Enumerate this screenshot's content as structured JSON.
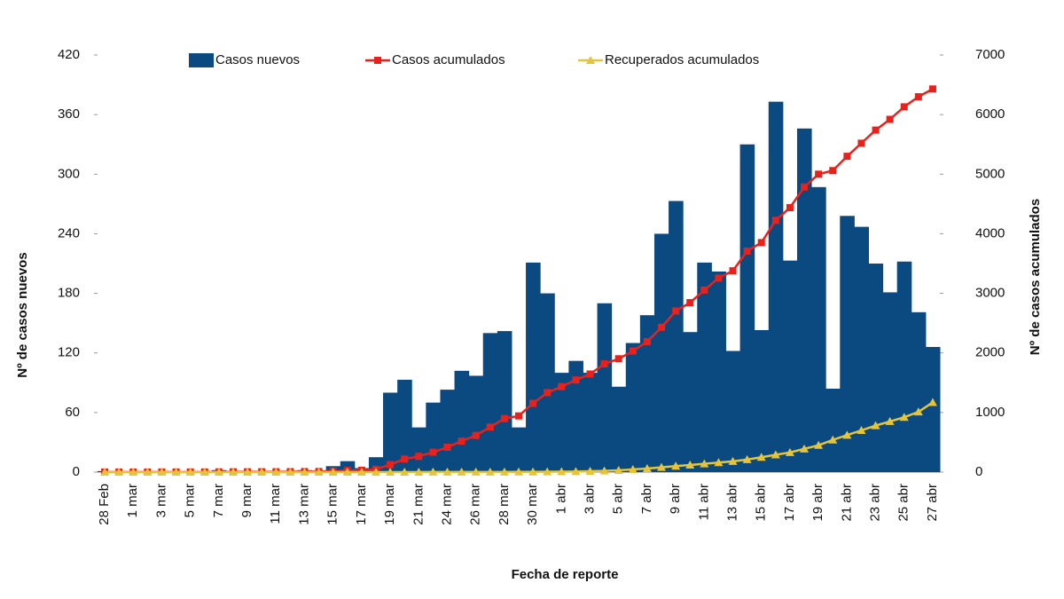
{
  "chart_data": {
    "type": "bar_line",
    "x_label": "Fecha de reporte",
    "y_label": "Nº de casos nuevos",
    "y2_label": "Nº de casos acumulados",
    "categories": [
      "28 Feb",
      null,
      "1 mar",
      null,
      "3 mar",
      null,
      "5 mar",
      null,
      "7 mar",
      null,
      "9 mar",
      null,
      "11 mar",
      null,
      "13 mar",
      null,
      "15 mar",
      null,
      "17 mar",
      null,
      "19 mar",
      null,
      "21 mar",
      null,
      "24 mar",
      null,
      "26 mar",
      null,
      "28 mar",
      null,
      "30 mar",
      null,
      "1 abr",
      null,
      "3 abr",
      null,
      "5 abr",
      null,
      "7 abr",
      null,
      "9 abr",
      null,
      "11 abr",
      null,
      "13 abr",
      null,
      "15 abr",
      null,
      "17 abr",
      null,
      "19 abr",
      null,
      "21 abr",
      null,
      "23 abr",
      null,
      "25 abr",
      null,
      "27 abr"
    ],
    "series": [
      {
        "name": "Casos nuevos",
        "color": "#0b4a80",
        "kind": "bar",
        "values": [
          1,
          0,
          0,
          0,
          1,
          0,
          0,
          0,
          2,
          1,
          0,
          1,
          0,
          1,
          2,
          1,
          6,
          11,
          4,
          15,
          80,
          93,
          45,
          70,
          83,
          102,
          97,
          140,
          142,
          45,
          211,
          180,
          100,
          112,
          100,
          170,
          86,
          130,
          158,
          240,
          273,
          141,
          211,
          202,
          122,
          330,
          143,
          373,
          213,
          346,
          287,
          84,
          258,
          247,
          210,
          181,
          212,
          161,
          126
        ]
      },
      {
        "name": "Casos acumulados",
        "color": "#e8211d",
        "kind": "line",
        "marker": "square",
        "axis": "y2",
        "values": [
          1,
          1,
          1,
          1,
          2,
          2,
          2,
          2,
          4,
          5,
          5,
          6,
          6,
          7,
          9,
          10,
          16,
          27,
          31,
          46,
          126,
          219,
          264,
          334,
          417,
          519,
          616,
          756,
          898,
          943,
          1154,
          1334,
          1434,
          1546,
          1646,
          1816,
          1902,
          2032,
          2190,
          2430,
          2703,
          2844,
          3055,
          3257,
          3379,
          3709,
          3852,
          4225,
          4438,
          4784,
          5000,
          5060,
          5300,
          5520,
          5740,
          5920,
          6130,
          6300,
          6430
        ]
      },
      {
        "name": "Recuperados acumulados",
        "color": "#e6c43a",
        "kind": "line",
        "marker": "triangle",
        "axis": "y2",
        "values": [
          0,
          0,
          0,
          0,
          0,
          0,
          0,
          0,
          0,
          0,
          0,
          0,
          0,
          0,
          0,
          0,
          0,
          0,
          0,
          0,
          0,
          0,
          0,
          1,
          1,
          1,
          1,
          2,
          2,
          3,
          3,
          5,
          7,
          10,
          14,
          20,
          30,
          45,
          60,
          80,
          100,
          120,
          140,
          160,
          180,
          210,
          250,
          290,
          330,
          390,
          450,
          540,
          620,
          700,
          780,
          850,
          920,
          1010,
          1170
        ]
      }
    ],
    "ylim": [
      0,
      420
    ],
    "yticks": [
      0,
      60,
      120,
      180,
      240,
      300,
      360,
      420
    ],
    "y2lim": [
      0,
      7000
    ],
    "y2ticks": [
      0,
      1000,
      2000,
      3000,
      4000,
      5000,
      6000,
      7000
    ]
  }
}
